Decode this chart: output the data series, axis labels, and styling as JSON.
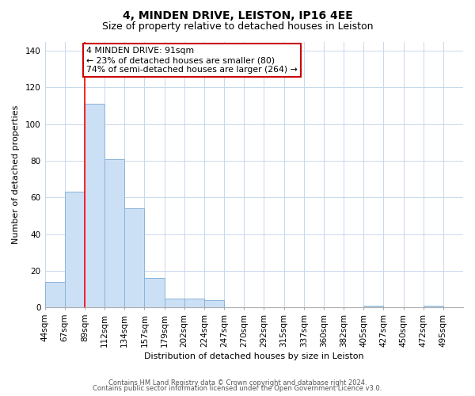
{
  "title": "4, MINDEN DRIVE, LEISTON, IP16 4EE",
  "subtitle": "Size of property relative to detached houses in Leiston",
  "xlabel": "Distribution of detached houses by size in Leiston",
  "ylabel": "Number of detached properties",
  "bins": [
    "44sqm",
    "67sqm",
    "89sqm",
    "112sqm",
    "134sqm",
    "157sqm",
    "179sqm",
    "202sqm",
    "224sqm",
    "247sqm",
    "270sqm",
    "292sqm",
    "315sqm",
    "337sqm",
    "360sqm",
    "382sqm",
    "405sqm",
    "427sqm",
    "450sqm",
    "472sqm",
    "495sqm"
  ],
  "counts": [
    14,
    63,
    111,
    81,
    54,
    16,
    5,
    5,
    4,
    0,
    0,
    0,
    0,
    0,
    0,
    0,
    1,
    0,
    0,
    1,
    0
  ],
  "bar_color": "#cce0f5",
  "bar_edge_color": "#8ab4d8",
  "red_line_bin_index": 2,
  "annotation_text": "4 MINDEN DRIVE: 91sqm\n← 23% of detached houses are smaller (80)\n74% of semi-detached houses are larger (264) →",
  "annotation_box_color": "#ffffff",
  "annotation_box_edge_color": "#cc0000",
  "ylim": [
    0,
    145
  ],
  "yticks": [
    0,
    20,
    40,
    60,
    80,
    100,
    120,
    140
  ],
  "footer1": "Contains HM Land Registry data © Crown copyright and database right 2024.",
  "footer2": "Contains public sector information licensed under the Open Government Licence v3.0.",
  "background_color": "#ffffff",
  "grid_color": "#c8d8ec",
  "title_fontsize": 10,
  "subtitle_fontsize": 9,
  "axis_label_fontsize": 8,
  "tick_fontsize": 7.5,
  "footer_fontsize": 6
}
